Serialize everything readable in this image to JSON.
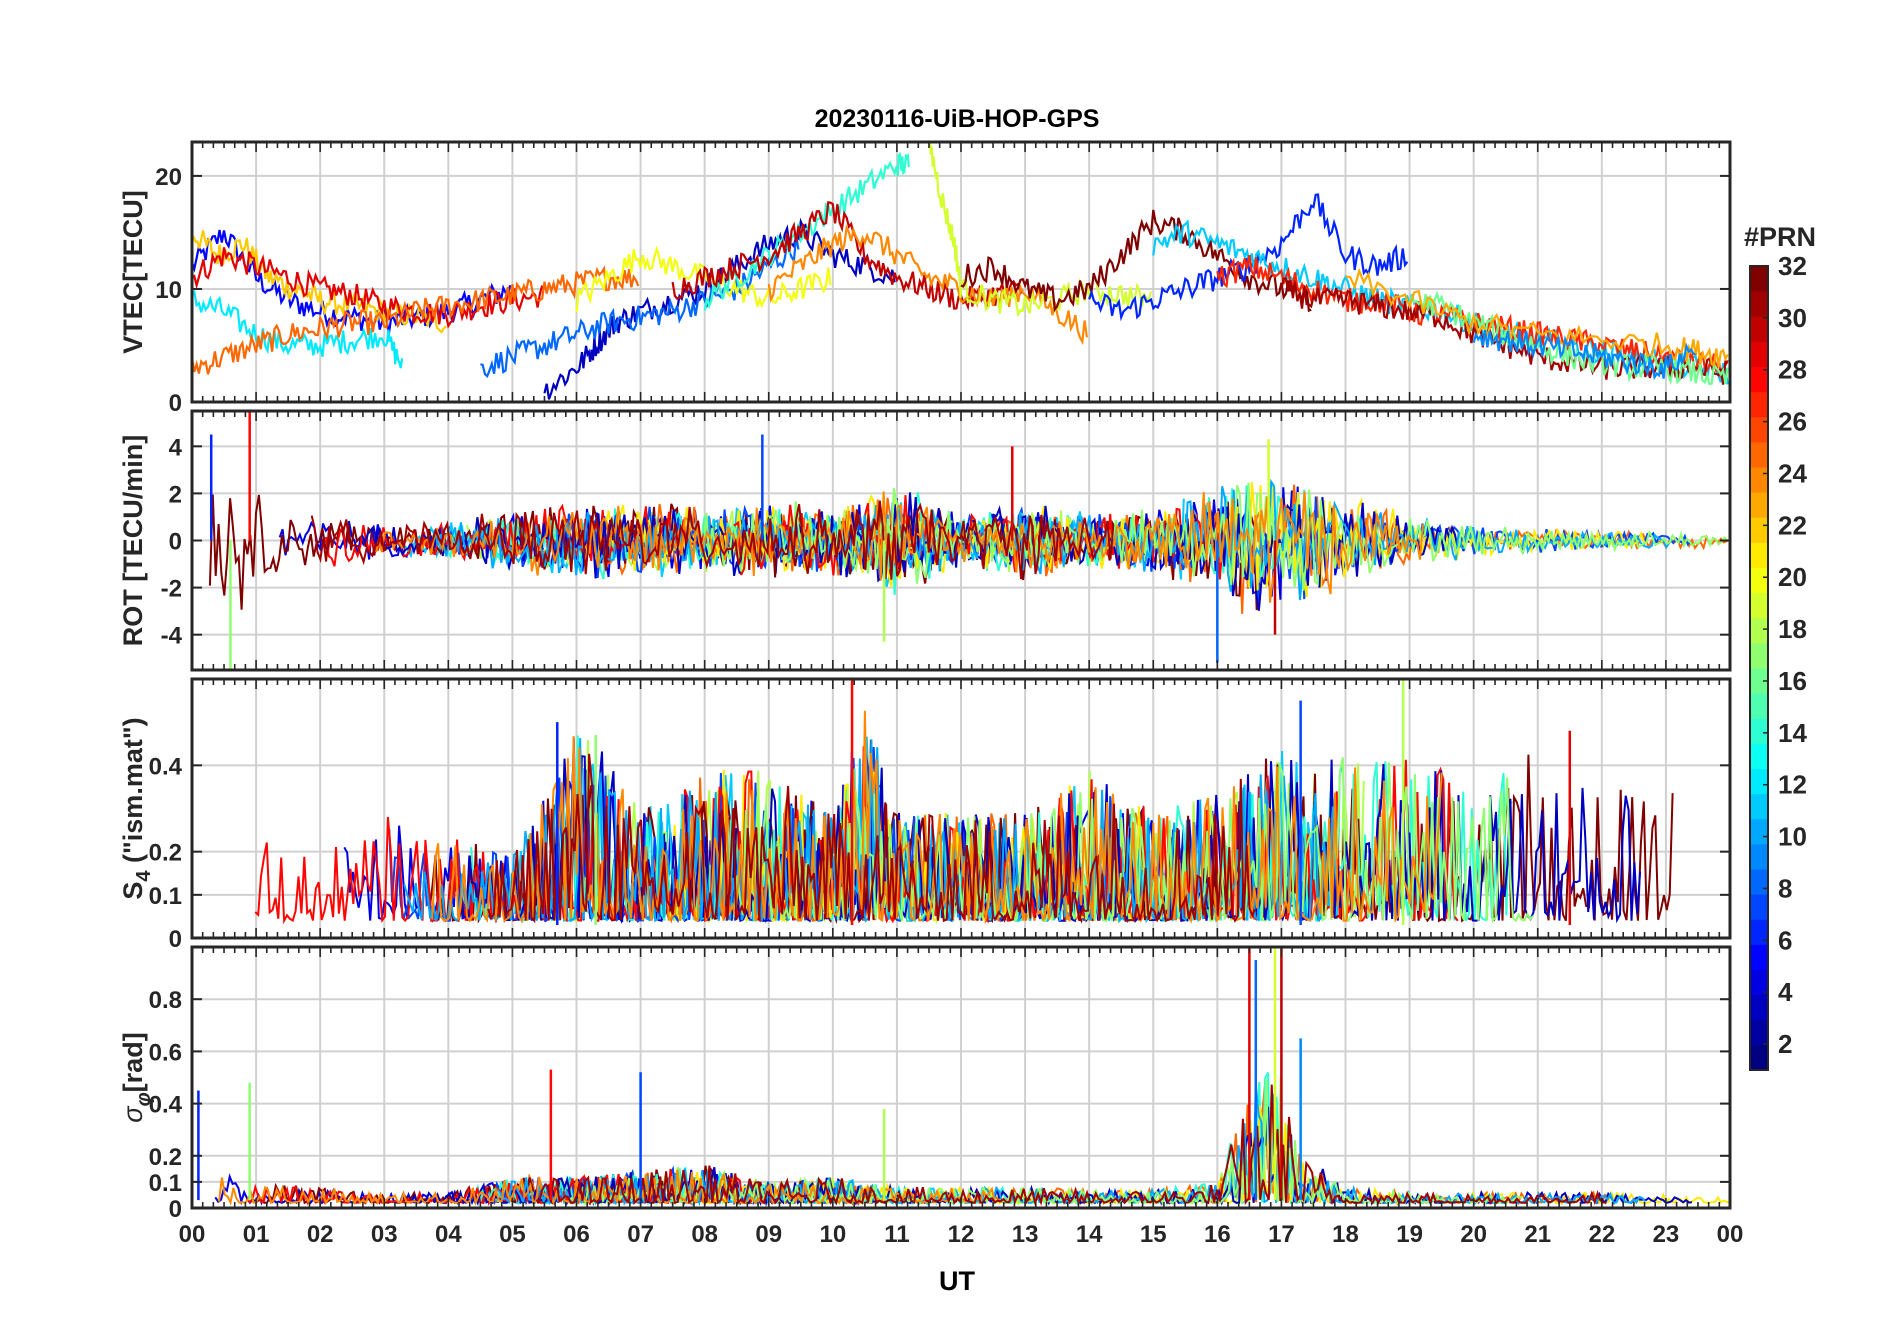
{
  "figure": {
    "title": "20230116-UiB-HOP-GPS",
    "xlabel": "UT",
    "x_tick_labels": [
      "00",
      "01",
      "02",
      "03",
      "04",
      "05",
      "06",
      "07",
      "08",
      "09",
      "10",
      "11",
      "12",
      "13",
      "14",
      "15",
      "16",
      "17",
      "18",
      "19",
      "20",
      "21",
      "22",
      "23",
      "00"
    ]
  },
  "colorbar": {
    "label": "#PRN",
    "ticks": [
      2,
      4,
      6,
      8,
      10,
      12,
      14,
      16,
      18,
      20,
      22,
      24,
      26,
      28,
      30,
      32
    ],
    "range": [
      1,
      32
    ],
    "colormap": "jet",
    "levels": 32
  },
  "chart_data": [
    {
      "type": "line",
      "id": "vtec",
      "ylabel": "VTEC[TECU]",
      "xlim": [
        0,
        24
      ],
      "ylim": [
        0,
        23
      ],
      "yticks": [
        0,
        10,
        20
      ],
      "grid": true,
      "note_series": "one trace per GPS satellite, colored by PRN",
      "series": [
        {
          "prn": 5,
          "x": [
            0.0,
            0.5,
            1.0,
            1.5,
            2.0,
            2.5,
            3.0,
            3.5,
            4.0,
            4.5,
            5.0
          ],
          "y": [
            12,
            15,
            11,
            9,
            8,
            7.5,
            7,
            7.5,
            8,
            9,
            10
          ]
        },
        {
          "prn": 22,
          "x": [
            0.0,
            0.4,
            0.8,
            1.2,
            1.6,
            2.0,
            2.5,
            3.0,
            3.5,
            4.0
          ],
          "y": [
            15,
            13,
            14,
            11,
            10,
            9,
            8.5,
            8,
            7.5,
            7
          ]
        },
        {
          "prn": 29,
          "x": [
            0.0,
            0.5,
            1.0,
            1.5,
            2.0,
            2.5,
            3.0,
            3.5,
            4.0,
            4.5,
            5.0,
            5.5
          ],
          "y": [
            11,
            13,
            12,
            11,
            10,
            9.5,
            8.5,
            8,
            7.8,
            8.5,
            9,
            9.5
          ]
        },
        {
          "prn": 12,
          "x": [
            0.0,
            0.5,
            1.0,
            1.5,
            2.0,
            2.5,
            3.0,
            3.3
          ],
          "y": [
            9,
            8,
            6,
            5,
            5,
            5.5,
            6,
            3
          ]
        },
        {
          "prn": 25,
          "x": [
            0.0,
            0.5,
            1.0,
            1.5,
            2.0,
            2.5,
            3.0,
            3.5,
            4.0,
            4.5,
            5.0,
            5.5,
            6.0,
            6.5,
            7.0
          ],
          "y": [
            3,
            4,
            5,
            6,
            6.5,
            7,
            7,
            8,
            8.5,
            9,
            9.5,
            10,
            10.5,
            11,
            11
          ]
        },
        {
          "prn": 3,
          "x": [
            5.5,
            6.0,
            6.3,
            6.6,
            7.0,
            7.5,
            8.0,
            8.5,
            9.0,
            9.5,
            10.0,
            10.5,
            11.0
          ],
          "y": [
            1,
            3,
            5,
            7,
            8,
            9,
            10,
            12,
            14,
            15,
            13,
            12,
            11
          ]
        },
        {
          "prn": 8,
          "x": [
            4.5,
            5.0,
            5.5,
            6.0,
            6.5,
            7.0,
            7.5,
            8.0,
            8.5,
            9.0,
            9.5
          ],
          "y": [
            3,
            4,
            5,
            6,
            7,
            7.5,
            8,
            9,
            10,
            12,
            14
          ]
        },
        {
          "prn": 20,
          "x": [
            6.0,
            6.5,
            7.0,
            7.5,
            8.0,
            8.5,
            9.0,
            9.5,
            10.0
          ],
          "y": [
            9,
            11,
            13,
            12,
            11,
            10,
            9,
            10,
            11
          ]
        },
        {
          "prn": 14,
          "x": [
            8.0,
            8.5,
            9.0,
            9.5,
            10.0,
            10.5,
            11.0,
            11.2
          ],
          "y": [
            9,
            11,
            13,
            15,
            17,
            19,
            21,
            21
          ]
        },
        {
          "prn": 30,
          "x": [
            7.5,
            8.0,
            8.5,
            9.0,
            9.5,
            10.0,
            10.5,
            11.0,
            11.5,
            12.0,
            12.5,
            13.0
          ],
          "y": [
            10,
            11,
            12,
            13,
            15,
            17,
            13,
            11,
            10,
            9,
            9.5,
            10
          ]
        },
        {
          "prn": 24,
          "x": [
            9.0,
            9.5,
            10.0,
            10.5,
            11.0,
            11.5,
            12.0,
            12.5,
            13.0,
            13.5,
            14.0
          ],
          "y": [
            10,
            12,
            14,
            15,
            13,
            11,
            10,
            9,
            10,
            8,
            6
          ]
        },
        {
          "prn": 19,
          "x": [
            11.5,
            11.7,
            11.9,
            12.0,
            12.5,
            13.0,
            13.5,
            14.0,
            14.5,
            15.0
          ],
          "y": [
            23,
            18,
            14,
            10,
            9,
            8.5,
            9,
            10,
            9.5,
            9
          ]
        },
        {
          "prn": 32,
          "x": [
            12.0,
            12.5,
            13.0,
            13.5,
            14.0,
            14.5,
            15.0,
            15.5,
            16.0,
            16.5,
            17.0,
            17.5
          ],
          "y": [
            11,
            12,
            10,
            9,
            10,
            13,
            16,
            15,
            13,
            11,
            10,
            9
          ]
        },
        {
          "prn": 6,
          "x": [
            14.0,
            14.5,
            15.0,
            15.5,
            16.0,
            16.5,
            17.0,
            17.5,
            18.0,
            18.5,
            19.0
          ],
          "y": [
            9,
            8,
            9,
            10,
            11,
            12,
            14,
            18,
            13,
            12,
            13
          ]
        },
        {
          "prn": 11,
          "x": [
            15.0,
            15.5,
            16.0,
            16.5,
            17.0,
            17.5,
            18.0,
            18.5,
            19.0,
            19.5,
            20.0,
            20.5,
            21.0,
            21.5,
            22.0,
            22.5,
            23.0,
            23.5,
            24.0
          ],
          "y": [
            14,
            15,
            14,
            13,
            12,
            11,
            10,
            9,
            8.5,
            8,
            7,
            6,
            5.5,
            5,
            4.5,
            4,
            3.5,
            3,
            2.5
          ]
        },
        {
          "prn": 27,
          "x": [
            16.0,
            16.5,
            17.0,
            17.5,
            18.0,
            18.5,
            19.0,
            19.5,
            20.0,
            20.5,
            21.0,
            21.5,
            22.0,
            22.5,
            23.0,
            23.5,
            24.0
          ],
          "y": [
            11,
            12,
            11,
            10,
            9,
            9,
            8,
            7.5,
            7,
            6.5,
            6,
            5.5,
            5,
            4.5,
            4,
            3.5,
            3
          ]
        },
        {
          "prn": 31,
          "x": [
            17.0,
            17.5,
            18.0,
            18.5,
            19.0,
            19.5,
            20.0,
            20.5,
            21.0,
            21.5,
            22.0,
            22.5,
            23.0,
            23.5,
            24.0
          ],
          "y": [
            10,
            9,
            9,
            8.5,
            8,
            7.5,
            6,
            5,
            4,
            3.5,
            3,
            3,
            3,
            3,
            2.5
          ]
        },
        {
          "prn": 16,
          "x": [
            19.0,
            19.5,
            20.0,
            20.5,
            21.0,
            21.5,
            22.0,
            22.5,
            23.0,
            23.5,
            24.0
          ],
          "y": [
            9,
            8.5,
            7,
            6,
            5,
            4,
            3.5,
            3,
            3,
            2.5,
            2
          ]
        },
        {
          "prn": 23,
          "x": [
            18.0,
            19.0,
            20.0,
            21.0,
            22.0,
            23.0,
            23.5,
            24.0
          ],
          "y": [
            11,
            9,
            7,
            6,
            5.5,
            5,
            4.5,
            4
          ]
        },
        {
          "prn": 9,
          "x": [
            20.0,
            20.5,
            21.0,
            21.5,
            22.0,
            22.5,
            23.0,
            23.5
          ],
          "y": [
            6,
            5.5,
            5,
            4.5,
            4,
            3.5,
            3,
            5
          ]
        }
      ]
    },
    {
      "type": "line",
      "id": "rot",
      "ylabel": "ROT [TECU/min]",
      "xlim": [
        0,
        24
      ],
      "ylim": [
        -5.5,
        5.5
      ],
      "yticks": [
        -4,
        -2,
        0,
        2,
        4
      ],
      "grid": true,
      "note_series": "rate of TEC per satellite, mostly within ±1 with bursts",
      "envelope": {
        "x": [
          0,
          0.5,
          1,
          1.5,
          2,
          3,
          4,
          5,
          6,
          7,
          8,
          9,
          10,
          11,
          12,
          13,
          14,
          15,
          16,
          16.5,
          17,
          18,
          19,
          20,
          21,
          22,
          23,
          24
        ],
        "amp": [
          3.0,
          4.0,
          2.5,
          1.5,
          1.2,
          0.8,
          0.8,
          1.5,
          1.8,
          1.8,
          1.5,
          1.8,
          1.5,
          2.5,
          1.2,
          1.8,
          1.2,
          1.5,
          2.5,
          3.5,
          3.5,
          2.0,
          1.2,
          0.8,
          0.6,
          0.5,
          0.4,
          0.3
        ]
      },
      "peaks": [
        {
          "x": 0.3,
          "y": 4.5
        },
        {
          "x": 0.6,
          "y": -5.5
        },
        {
          "x": 0.9,
          "y": 5.5
        },
        {
          "x": 8.9,
          "y": 4.5
        },
        {
          "x": 10.8,
          "y": -4.3
        },
        {
          "x": 12.8,
          "y": 4.0
        },
        {
          "x": 16.0,
          "y": -5.2
        },
        {
          "x": 16.8,
          "y": 4.3
        },
        {
          "x": 16.9,
          "y": -4.0
        }
      ]
    },
    {
      "type": "line",
      "id": "s4",
      "ylabel": "S4 (\"ism.mat\")",
      "ylabel_main": "S",
      "ylabel_sub": "4",
      "ylabel_rest": " (\"ism.mat\")",
      "xlim": [
        0,
        24
      ],
      "ylim": [
        0,
        0.6
      ],
      "yticks": [
        0,
        0.1,
        0.2,
        0.4
      ],
      "ytick_labels": [
        "0",
        "0.1",
        "0.2",
        "0.4"
      ],
      "grid": true,
      "note_series": "S4 amplitude scintillation index per satellite",
      "envelope": {
        "x": [
          0,
          1,
          2,
          3,
          4,
          5,
          6,
          6.5,
          7,
          8,
          9,
          10,
          10.5,
          11,
          12,
          13,
          14,
          15,
          16,
          17,
          17.5,
          18,
          19,
          20,
          21,
          22,
          23,
          24
        ],
        "amp": [
          0.15,
          0.22,
          0.15,
          0.25,
          0.2,
          0.15,
          0.45,
          0.4,
          0.25,
          0.35,
          0.35,
          0.25,
          0.5,
          0.25,
          0.25,
          0.25,
          0.35,
          0.25,
          0.3,
          0.4,
          0.35,
          0.4,
          0.4,
          0.3,
          0.4,
          0.3,
          0.35,
          0.15
        ]
      },
      "peaks": [
        {
          "x": 5.7,
          "y": 0.5
        },
        {
          "x": 6.3,
          "y": 0.47
        },
        {
          "x": 10.3,
          "y": 0.6
        },
        {
          "x": 17.3,
          "y": 0.55
        },
        {
          "x": 18.9,
          "y": 0.6
        },
        {
          "x": 21.5,
          "y": 0.48
        }
      ]
    },
    {
      "type": "line",
      "id": "sigma_phi",
      "ylabel": "σφ[rad]",
      "ylabel_main": "σ",
      "ylabel_sub": "φ",
      "ylabel_rest": "[rad]",
      "xlim": [
        0,
        24
      ],
      "ylim": [
        0,
        1.0
      ],
      "yticks": [
        0,
        0.1,
        0.2,
        0.4,
        0.6,
        0.8
      ],
      "ytick_labels": [
        "0",
        "0.1",
        "0.2",
        "0.4",
        "0.6",
        "0.8"
      ],
      "grid": true,
      "note_series": "phase scintillation index per satellite",
      "envelope": {
        "x": [
          0,
          0.5,
          1,
          2,
          3,
          4,
          5,
          6,
          7,
          8,
          9,
          10,
          11,
          12,
          13,
          14,
          15,
          16,
          16.3,
          16.7,
          17,
          17.3,
          18,
          19,
          20,
          21,
          22,
          23,
          24
        ],
        "amp": [
          0.15,
          0.12,
          0.08,
          0.06,
          0.04,
          0.04,
          0.1,
          0.1,
          0.12,
          0.15,
          0.08,
          0.1,
          0.06,
          0.06,
          0.06,
          0.05,
          0.05,
          0.08,
          0.3,
          0.5,
          0.5,
          0.2,
          0.06,
          0.04,
          0.04,
          0.04,
          0.04,
          0.03,
          0.02
        ]
      },
      "peaks": [
        {
          "x": 0.1,
          "y": 0.45
        },
        {
          "x": 0.9,
          "y": 0.48
        },
        {
          "x": 5.6,
          "y": 0.53
        },
        {
          "x": 7.0,
          "y": 0.52
        },
        {
          "x": 10.8,
          "y": 0.38
        },
        {
          "x": 16.5,
          "y": 1.0
        },
        {
          "x": 16.6,
          "y": 0.95
        },
        {
          "x": 16.9,
          "y": 1.0
        },
        {
          "x": 17.0,
          "y": 1.0
        },
        {
          "x": 17.3,
          "y": 0.65
        }
      ]
    }
  ]
}
